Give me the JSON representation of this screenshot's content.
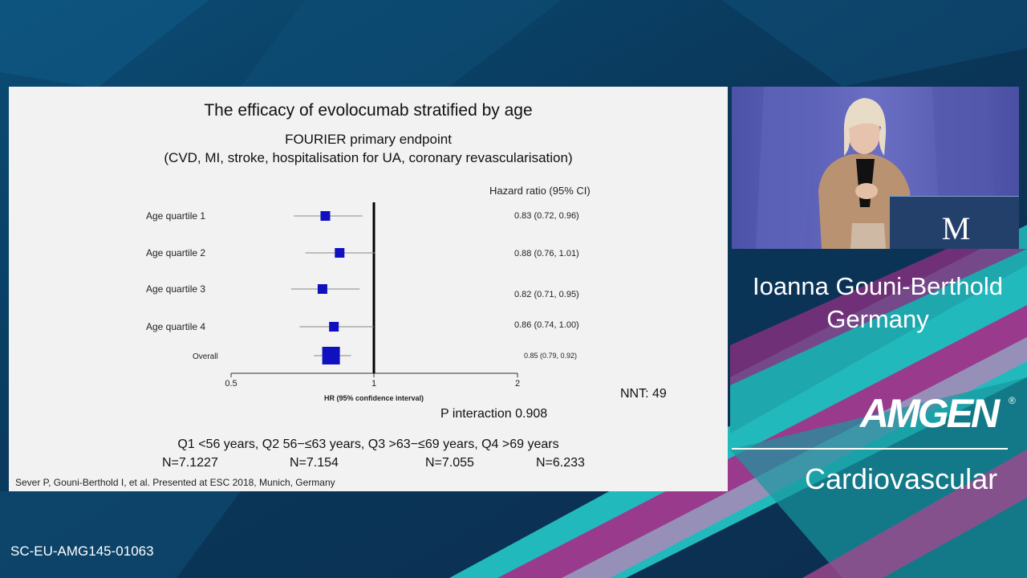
{
  "slide": {
    "title": "The efficacy of evolocumab stratified by age",
    "subtitle_line1": "FOURIER primary endpoint",
    "subtitle_line2": "(CVD, MI, stroke, hospitalisation for UA, coronary revascularisation)",
    "hr_header": "Hazard ratio (95% CI)",
    "nnt": "NNT: 49",
    "p_interaction": "P interaction 0.908",
    "quartile_definitions": "Q1 <56 years, Q2 56−≤63 years, Q3 >63−≤69 years, Q4 >69 years",
    "n_values": [
      "N=7.1227",
      "N=7.154",
      "N=7.055",
      "N=6.233"
    ],
    "citation": "Sever P, Gouni-Berthold I, et al. Presented at ESC 2018, Munich, Germany"
  },
  "chart_data": {
    "type": "forest",
    "xlabel": "HR (95% confidence interval)",
    "xlim": [
      0.5,
      2
    ],
    "xticks": [
      {
        "value": 0.5,
        "label": "0.5"
      },
      {
        "value": 1,
        "label": "1"
      },
      {
        "value": 2,
        "label": "2"
      }
    ],
    "reference_line": 1,
    "marker_color": "#1010c0",
    "rows": [
      {
        "label": "Age quartile 1",
        "hr": 0.83,
        "ci_low": 0.72,
        "ci_high": 0.96,
        "text": "0.83 (0.72, 0.96)"
      },
      {
        "label": "Age quartile 2",
        "hr": 0.88,
        "ci_low": 0.76,
        "ci_high": 1.01,
        "text": "0.88 (0.76, 1.01)"
      },
      {
        "label": "Age quartile 3",
        "hr": 0.82,
        "ci_low": 0.71,
        "ci_high": 0.95,
        "text": "0.82 (0.71, 0.95)"
      },
      {
        "label": "Age quartile 4",
        "hr": 0.86,
        "ci_low": 0.74,
        "ci_high": 1.0,
        "text": "0.86 (0.74, 1.00)"
      },
      {
        "label": "Overall",
        "hr": 0.85,
        "ci_low": 0.79,
        "ci_high": 0.92,
        "text": "0.85 (0.79, 0.92)",
        "summary": true
      }
    ]
  },
  "sidebar": {
    "speaker_name": "Ioanna Gouni-Berthold",
    "speaker_country": "Germany",
    "logo_m": "M",
    "brand": "AMGEN",
    "brand_mark": "®",
    "therapy_area": "Cardiovascular"
  },
  "footer": {
    "code": "SC-EU-AMG145-01063"
  },
  "colors": {
    "background": "#0d3a5c",
    "slide_bg": "#f2f2f2",
    "video_bg": "#5a5fb3",
    "accent_teal": "#2ec4c4",
    "accent_magenta": "#a03c8c"
  }
}
